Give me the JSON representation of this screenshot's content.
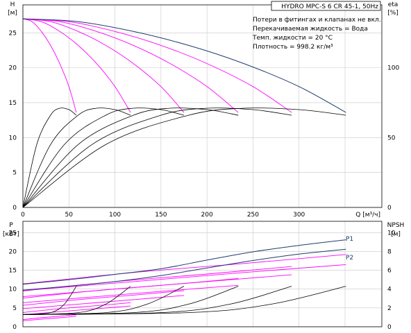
{
  "title": "HYDRO MPC-S 6 CR 45-1, 50Hz",
  "notes": [
    "Потери в фитингах и клапанах не вкл.",
    "Перекачиваемая жидкость = Вода",
    "Темп. жидкости = 20 °C",
    "Плотность = 998.2 кг/м³"
  ],
  "colors": {
    "pump_curve": "#ff00ff",
    "max_curve": "#1f3a6b",
    "eff_curve": "#000000",
    "grid": "#c8c8c8"
  },
  "chart_data": [
    {
      "type": "line",
      "name": "head-efficiency",
      "xlabel": "Q [м³/ч]",
      "ylabel_left": [
        "H",
        "[м]"
      ],
      "ylabel_right": [
        "eta",
        "[%]"
      ],
      "xlim": [
        0,
        390
      ],
      "ylim_left": [
        0,
        29
      ],
      "ylim_right": [
        0,
        145
      ],
      "x_ticks": [
        "0",
        "50",
        "100",
        "150",
        "200",
        "250",
        "300"
      ],
      "y_ticks_left": [
        "0",
        "5",
        "10",
        "15",
        "20",
        "25"
      ],
      "y_ticks_right": [
        "0",
        "50",
        "100"
      ],
      "head_curves": [
        {
          "pumps": 1,
          "q_max": 58,
          "points": [
            [
              0,
              27.0
            ],
            [
              10,
              26.6
            ],
            [
              20,
              25.2
            ],
            [
              30,
              23.2
            ],
            [
              40,
              20.6
            ],
            [
              50,
              17.3
            ],
            [
              58,
              13.6
            ]
          ]
        },
        {
          "pumps": 2,
          "q_max": 117,
          "points": [
            [
              0,
              27.0
            ],
            [
              20,
              26.6
            ],
            [
              40,
              25.2
            ],
            [
              60,
              23.2
            ],
            [
              80,
              20.6
            ],
            [
              100,
              17.3
            ],
            [
              117,
              13.6
            ]
          ]
        },
        {
          "pumps": 3,
          "q_max": 175,
          "points": [
            [
              0,
              27.0
            ],
            [
              30,
              26.6
            ],
            [
              60,
              25.2
            ],
            [
              90,
              23.2
            ],
            [
              120,
              20.6
            ],
            [
              150,
              17.3
            ],
            [
              175,
              13.6
            ]
          ]
        },
        {
          "pumps": 4,
          "q_max": 234,
          "points": [
            [
              0,
              27.0
            ],
            [
              40,
              26.6
            ],
            [
              80,
              25.2
            ],
            [
              120,
              23.2
            ],
            [
              160,
              20.6
            ],
            [
              200,
              17.3
            ],
            [
              234,
              13.6
            ]
          ]
        },
        {
          "pumps": 5,
          "q_max": 292,
          "points": [
            [
              0,
              27.0
            ],
            [
              50,
              26.6
            ],
            [
              100,
              25.2
            ],
            [
              150,
              23.2
            ],
            [
              200,
              20.6
            ],
            [
              250,
              17.3
            ],
            [
              292,
              13.6
            ]
          ]
        },
        {
          "pumps": 6,
          "q_max": 351,
          "points": [
            [
              0,
              27.0
            ],
            [
              60,
              26.6
            ],
            [
              120,
              25.2
            ],
            [
              180,
              23.2
            ],
            [
              240,
              20.6
            ],
            [
              300,
              17.3
            ],
            [
              351,
              13.6
            ]
          ]
        }
      ],
      "efficiency_curves": [
        {
          "pumps": 1,
          "points": [
            [
              0,
              0
            ],
            [
              15,
              45
            ],
            [
              30,
              66
            ],
            [
              40,
              71
            ],
            [
              50,
              70
            ],
            [
              58,
              66
            ]
          ]
        },
        {
          "pumps": 2,
          "points": [
            [
              0,
              0
            ],
            [
              30,
              45
            ],
            [
              60,
              66
            ],
            [
              80,
              71
            ],
            [
              100,
              70
            ],
            [
              117,
              66
            ]
          ]
        },
        {
          "pumps": 3,
          "points": [
            [
              0,
              0
            ],
            [
              45,
              45
            ],
            [
              90,
              66
            ],
            [
              120,
              71
            ],
            [
              150,
              70
            ],
            [
              175,
              66
            ]
          ]
        },
        {
          "pumps": 4,
          "points": [
            [
              0,
              0
            ],
            [
              60,
              45
            ],
            [
              120,
              66
            ],
            [
              160,
              71
            ],
            [
              200,
              70
            ],
            [
              234,
              66
            ]
          ]
        },
        {
          "pumps": 5,
          "points": [
            [
              0,
              0
            ],
            [
              75,
              45
            ],
            [
              150,
              66
            ],
            [
              200,
              71
            ],
            [
              250,
              70
            ],
            [
              292,
              66
            ]
          ]
        },
        {
          "pumps": 6,
          "points": [
            [
              0,
              0
            ],
            [
              90,
              45
            ],
            [
              180,
              66
            ],
            [
              240,
              71
            ],
            [
              300,
              70
            ],
            [
              351,
              66
            ]
          ]
        }
      ]
    },
    {
      "type": "line",
      "name": "power-npsh",
      "ylabel_left": [
        "P",
        "[кВт]"
      ],
      "ylabel_right": [
        "NPSH",
        "[м]"
      ],
      "xlim": [
        0,
        390
      ],
      "ylim_left": [
        0,
        28
      ],
      "ylim_right": [
        0,
        11.2
      ],
      "y_ticks_left": [
        "0",
        "5",
        "10",
        "15",
        "20",
        "25"
      ],
      "y_ticks_right": [
        "0",
        "2",
        "4",
        "6",
        "8",
        "10"
      ],
      "power_labels": [
        "P1",
        "P2"
      ],
      "p1_curve": [
        [
          0,
          11.3
        ],
        [
          50,
          12.5
        ],
        [
          100,
          13.9
        ],
        [
          150,
          15.4
        ],
        [
          200,
          17.7
        ],
        [
          250,
          19.9
        ],
        [
          300,
          21.6
        ],
        [
          351,
          23.1
        ]
      ],
      "p2_curve": [
        [
          0,
          9.7
        ],
        [
          50,
          10.8
        ],
        [
          100,
          12.0
        ],
        [
          150,
          13.6
        ],
        [
          200,
          15.6
        ],
        [
          250,
          17.6
        ],
        [
          300,
          19.3
        ],
        [
          351,
          20.6
        ]
      ],
      "power_curves": [
        {
          "pumps": 1,
          "p1": [
            [
              0,
              1.9
            ],
            [
              20,
              2.4
            ],
            [
              40,
              2.8
            ],
            [
              58,
              3.2
            ]
          ],
          "p2": [
            [
              0,
              1.6
            ],
            [
              20,
              2.0
            ],
            [
              40,
              2.4
            ],
            [
              58,
              2.8
            ]
          ]
        },
        {
          "pumps": 2,
          "p1": [
            [
              0,
              3.8
            ],
            [
              40,
              4.8
            ],
            [
              80,
              5.6
            ],
            [
              117,
              6.4
            ]
          ],
          "p2": [
            [
              0,
              3.2
            ],
            [
              40,
              4.0
            ],
            [
              80,
              4.8
            ],
            [
              117,
              5.5
            ]
          ]
        },
        {
          "pumps": 3,
          "p1": [
            [
              0,
              5.7
            ],
            [
              60,
              7.2
            ],
            [
              120,
              8.4
            ],
            [
              175,
              9.6
            ]
          ],
          "p2": [
            [
              0,
              4.8
            ],
            [
              60,
              6.0
            ],
            [
              120,
              7.2
            ],
            [
              175,
              8.3
            ]
          ]
        },
        {
          "pumps": 4,
          "p1": [
            [
              0,
              7.6
            ],
            [
              80,
              9.6
            ],
            [
              160,
              11.2
            ],
            [
              234,
              12.8
            ]
          ],
          "p2": [
            [
              0,
              6.4
            ],
            [
              80,
              8.0
            ],
            [
              160,
              9.6
            ],
            [
              234,
              11.0
            ]
          ]
        },
        {
          "pumps": 5,
          "p1": [
            [
              0,
              9.5
            ],
            [
              100,
              12.0
            ],
            [
              200,
              14.0
            ],
            [
              292,
              16.0
            ]
          ],
          "p2": [
            [
              0,
              8.0
            ],
            [
              100,
              10.0
            ],
            [
              200,
              12.0
            ],
            [
              292,
              13.8
            ]
          ]
        },
        {
          "pumps": 6,
          "p1": [
            [
              0,
              11.4
            ],
            [
              120,
              14.4
            ],
            [
              240,
              16.8
            ],
            [
              351,
              19.2
            ]
          ],
          "p2": [
            [
              0,
              9.6
            ],
            [
              120,
              12.0
            ],
            [
              240,
              14.4
            ],
            [
              351,
              16.5
            ]
          ]
        }
      ],
      "npsh_curves": [
        {
          "pumps": 1,
          "points": [
            [
              0,
              1.3
            ],
            [
              30,
              1.5
            ],
            [
              45,
              2.4
            ],
            [
              58,
              4.3
            ]
          ]
        },
        {
          "pumps": 2,
          "points": [
            [
              0,
              1.3
            ],
            [
              60,
              1.5
            ],
            [
              90,
              2.4
            ],
            [
              117,
              4.3
            ]
          ]
        },
        {
          "pumps": 3,
          "points": [
            [
              0,
              1.3
            ],
            [
              90,
              1.5
            ],
            [
              135,
              2.4
            ],
            [
              175,
              4.3
            ]
          ]
        },
        {
          "pumps": 4,
          "points": [
            [
              0,
              1.3
            ],
            [
              120,
              1.5
            ],
            [
              180,
              2.4
            ],
            [
              234,
              4.3
            ]
          ]
        },
        {
          "pumps": 5,
          "points": [
            [
              0,
              1.3
            ],
            [
              150,
              1.5
            ],
            [
              225,
              2.4
            ],
            [
              292,
              4.3
            ]
          ]
        },
        {
          "pumps": 6,
          "points": [
            [
              0,
              1.3
            ],
            [
              180,
              1.5
            ],
            [
              270,
              2.4
            ],
            [
              351,
              4.3
            ]
          ]
        }
      ]
    }
  ]
}
